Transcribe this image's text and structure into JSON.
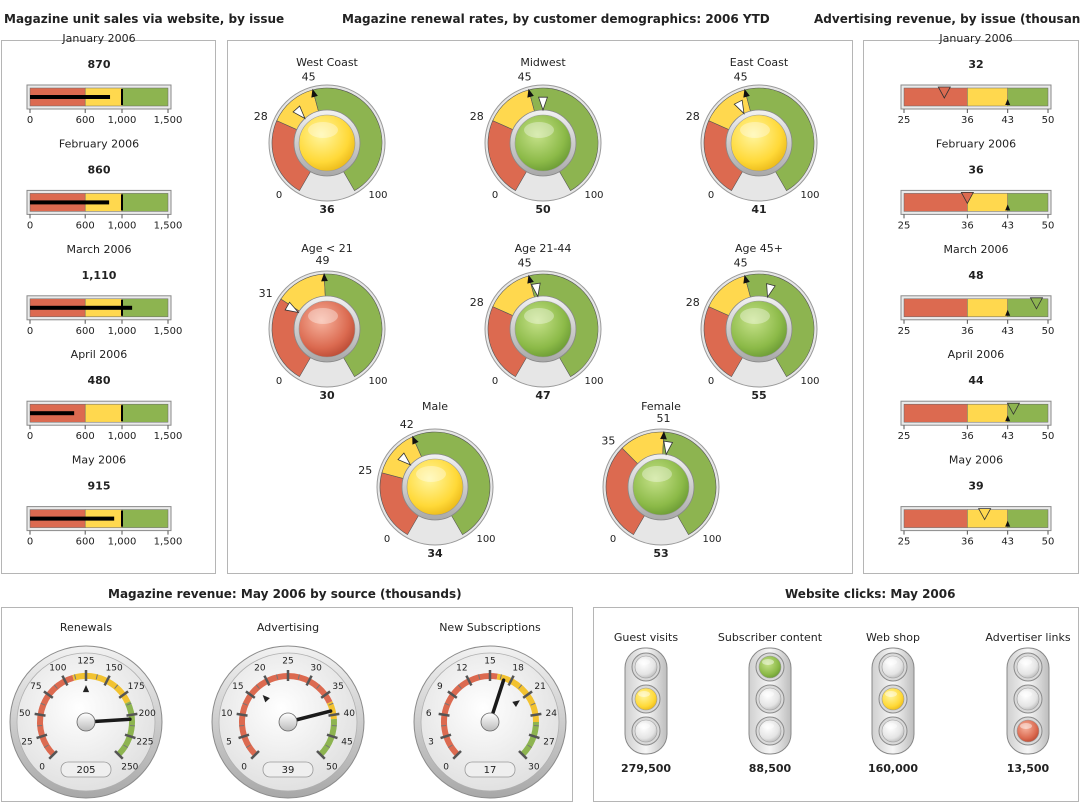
{
  "titles": {
    "unit_sales": "Magazine unit sales via website, by issue",
    "renewal": "Magazine renewal rates, by customer demographics: 2006 YTD",
    "advertising": "Advertising revenue, by issue (thousands)",
    "revenue": "Magazine revenue: May 2006 by source (thousands)",
    "clicks": "Website clicks: May 2006"
  },
  "colors": {
    "red": "#dc6a50",
    "yellow": "#ffd84e",
    "green": "#8db450",
    "dark": "#222222"
  },
  "chart_data": [
    {
      "type": "bullet",
      "title": "Magazine unit sales via website, by issue",
      "range": [
        0,
        1500
      ],
      "ticks": [
        0,
        600,
        1000,
        1500
      ],
      "tick_labels": [
        "0",
        "600",
        "1,000",
        "1,500"
      ],
      "bands": [
        600,
        1000,
        1500
      ],
      "items": [
        {
          "label": "January 2006",
          "value": 870,
          "value_label": "870",
          "target": 1000
        },
        {
          "label": "February 2006",
          "value": 860,
          "value_label": "860",
          "target": 1000
        },
        {
          "label": "March 2006",
          "value": 1110,
          "value_label": "1,110",
          "target": 1000
        },
        {
          "label": "April 2006",
          "value": 480,
          "value_label": "480",
          "target": 1000
        },
        {
          "label": "May 2006",
          "value": 915,
          "value_label": "915",
          "target": 1000
        }
      ]
    },
    {
      "type": "dial",
      "title": "Magazine renewal rates, by customer demographics: 2006 YTD",
      "range": [
        0,
        100
      ],
      "range_labels": [
        "0",
        "100"
      ],
      "items": [
        {
          "label": "West Coast",
          "value": 36,
          "red_max": 28,
          "yellow_max": 45,
          "light": "yellow"
        },
        {
          "label": "Midwest",
          "value": 50,
          "red_max": 28,
          "yellow_max": 45,
          "light": "green"
        },
        {
          "label": "East Coast",
          "value": 41,
          "red_max": 28,
          "yellow_max": 45,
          "light": "yellow"
        },
        {
          "label": "Age < 21",
          "value": 30,
          "red_max": 31,
          "yellow_max": 49,
          "light": "red"
        },
        {
          "label": "Age 21-44",
          "value": 47,
          "red_max": 28,
          "yellow_max": 45,
          "light": "green"
        },
        {
          "label": "Age 45+",
          "value": 55,
          "red_max": 28,
          "yellow_max": 45,
          "light": "green"
        },
        {
          "label": "Male",
          "value": 34,
          "red_max": 25,
          "yellow_max": 42,
          "light": "yellow"
        },
        {
          "label": "Female",
          "value": 53,
          "red_max": 35,
          "yellow_max": 51,
          "light": "green"
        }
      ]
    },
    {
      "type": "bullet",
      "title": "Advertising revenue, by issue (thousands)",
      "range": [
        25,
        50
      ],
      "ticks": [
        25,
        36,
        43,
        50
      ],
      "tick_labels": [
        "25",
        "36",
        "43",
        "50"
      ],
      "bands": [
        36,
        43,
        50
      ],
      "target": 43,
      "items": [
        {
          "label": "January 2006",
          "value": 32,
          "value_label": "32",
          "marker": "red"
        },
        {
          "label": "February 2006",
          "value": 36,
          "value_label": "36",
          "marker": "red"
        },
        {
          "label": "March 2006",
          "value": 48,
          "value_label": "48",
          "marker": "green"
        },
        {
          "label": "April 2006",
          "value": 44,
          "value_label": "44",
          "marker": "green"
        },
        {
          "label": "May 2006",
          "value": 39,
          "value_label": "39",
          "marker": "yellow"
        }
      ]
    },
    {
      "type": "speedometer",
      "title": "Magazine revenue: May 2006 by source (thousands)",
      "items": [
        {
          "label": "Renewals",
          "value": 205,
          "value_label": "205",
          "min": 0,
          "max": 250,
          "tick_values": [
            0,
            25,
            50,
            75,
            100,
            125,
            150,
            175,
            200,
            225,
            250
          ],
          "tick_labels": [
            "0",
            "25",
            "50",
            "75",
            "100",
            "125",
            "150",
            "175",
            "200",
            "225",
            "250"
          ],
          "red_max": 110,
          "yellow_max": 185,
          "target": 125
        },
        {
          "label": "Advertising",
          "value": 39,
          "value_label": "39",
          "min": 0,
          "max": 50,
          "tick_values": [
            0,
            5,
            10,
            15,
            20,
            25,
            30,
            35,
            40,
            45,
            50
          ],
          "tick_labels": [
            "0",
            "5",
            "10",
            "15",
            "20",
            "25",
            "30",
            "35",
            "40",
            "45",
            "50"
          ],
          "red_max": 37,
          "yellow_max": 41,
          "target": 17
        },
        {
          "label": "New Subscriptions",
          "value": 17,
          "value_label": "17",
          "min": 0,
          "max": 30,
          "tick_values": [
            0,
            3,
            6,
            9,
            12,
            15,
            18,
            21,
            24,
            27,
            30
          ],
          "tick_labels": [
            "0",
            "3",
            "6",
            "9",
            "12",
            "15",
            "18",
            "21",
            "24",
            "27",
            "30"
          ],
          "red_max": 16,
          "yellow_max": 25,
          "target": 21
        }
      ]
    },
    {
      "type": "traffic_light",
      "title": "Website clicks: May 2006",
      "items": [
        {
          "label": "Guest visits",
          "value": 279500,
          "value_label": "279,500",
          "lit": "yellow"
        },
        {
          "label": "Subscriber content",
          "value": 88500,
          "value_label": "88,500",
          "lit": "green"
        },
        {
          "label": "Web shop",
          "value": 160000,
          "value_label": "160,000",
          "lit": "yellow"
        },
        {
          "label": "Advertiser links",
          "value": 13500,
          "value_label": "13,500",
          "lit": "red"
        }
      ]
    }
  ]
}
